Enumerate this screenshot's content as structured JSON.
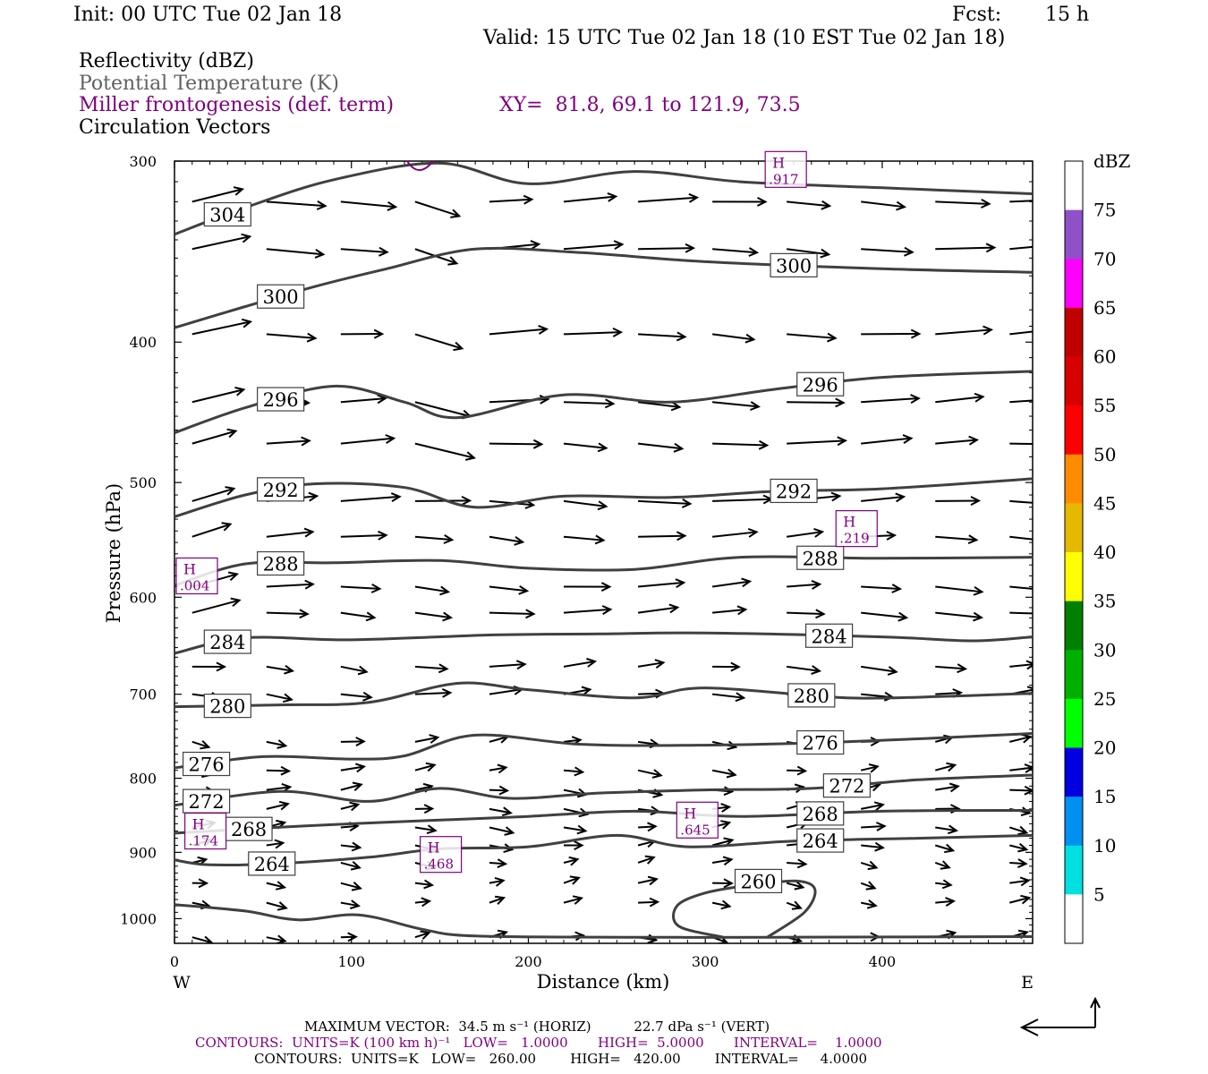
{
  "header": {
    "init": "Init: 00 UTC Tue 02 Jan 18",
    "fcst_label": "Fcst:",
    "fcst_value": "15 h",
    "valid": "Valid: 15 UTC Tue 02 Jan 18 (10 EST Tue 02 Jan 18)",
    "field1": "Reflectivity (dBZ)",
    "field2": "Potential Temperature (K)",
    "field3": "Miller frontogenesis (def. term)",
    "xy": "XY=  81.8, 69.1 to 121.9, 73.5",
    "field4": "Circulation Vectors"
  },
  "colors": {
    "theta_contour": "#404040",
    "frontogenesis": "#800080",
    "vector": "#000000"
  },
  "chart_data": {
    "type": "line",
    "subtype": "vertical cross-section",
    "xlabel": "Distance (km)",
    "ylabel": "Pressure (hPa)",
    "xlim": [
      0,
      485
    ],
    "ylim": [
      1040,
      300
    ],
    "y_scale": "log",
    "x_ticks": [
      "0",
      "100",
      "200",
      "300",
      "400"
    ],
    "y_ticks": [
      "300",
      "400",
      "500",
      "600",
      "700",
      "800",
      "900",
      "1000"
    ],
    "west_label": "W",
    "east_label": "E",
    "theta_contours": [
      {
        "label": "304",
        "points": [
          [
            0,
            337
          ],
          [
            40,
            323
          ],
          [
            90,
            309
          ],
          [
            150,
            301
          ],
          [
            200,
            311
          ],
          [
            260,
            305
          ],
          [
            320,
            310
          ],
          [
            400,
            313
          ],
          [
            485,
            316
          ]
        ]
      },
      {
        "label": "300",
        "points": [
          [
            0,
            391
          ],
          [
            40,
            378
          ],
          [
            80,
            366
          ],
          [
            120,
            356
          ],
          [
            170,
            345
          ],
          [
            230,
            347
          ],
          [
            300,
            352
          ],
          [
            400,
            356
          ],
          [
            485,
            358
          ]
        ]
      },
      {
        "label": "296",
        "points": [
          [
            0,
            462
          ],
          [
            40,
            444
          ],
          [
            90,
            429
          ],
          [
            130,
            440
          ],
          [
            160,
            451
          ],
          [
            220,
            435
          ],
          [
            280,
            440
          ],
          [
            340,
            431
          ],
          [
            400,
            423
          ],
          [
            485,
            419
          ]
        ]
      },
      {
        "label": "292",
        "points": [
          [
            0,
            528
          ],
          [
            40,
            510
          ],
          [
            80,
            501
          ],
          [
            130,
            504
          ],
          [
            170,
            520
          ],
          [
            220,
            511
          ],
          [
            280,
            512
          ],
          [
            340,
            507
          ],
          [
            400,
            505
          ],
          [
            485,
            497
          ]
        ]
      },
      {
        "label": "288",
        "points": [
          [
            0,
            589
          ],
          [
            40,
            569
          ],
          [
            90,
            568
          ],
          [
            150,
            566
          ],
          [
            200,
            573
          ],
          [
            260,
            574
          ],
          [
            320,
            563
          ],
          [
            400,
            564
          ],
          [
            485,
            563
          ]
        ]
      },
      {
        "label": "284",
        "points": [
          [
            0,
            656
          ],
          [
            40,
            640
          ],
          [
            100,
            642
          ],
          [
            180,
            637
          ],
          [
            240,
            636
          ],
          [
            300,
            635
          ],
          [
            400,
            639
          ],
          [
            450,
            643
          ],
          [
            485,
            639
          ]
        ]
      },
      {
        "label": "280",
        "points": [
          [
            0,
            714
          ],
          [
            60,
            712
          ],
          [
            110,
            709
          ],
          [
            160,
            688
          ],
          [
            200,
            695
          ],
          [
            260,
            704
          ],
          [
            300,
            693
          ],
          [
            380,
            704
          ],
          [
            440,
            702
          ],
          [
            485,
            699
          ]
        ]
      },
      {
        "label": "276",
        "points": [
          [
            0,
            787
          ],
          [
            50,
            773
          ],
          [
            100,
            776
          ],
          [
            130,
            772
          ],
          [
            170,
            747
          ],
          [
            230,
            758
          ],
          [
            300,
            759
          ],
          [
            380,
            755
          ],
          [
            485,
            745
          ]
        ]
      },
      {
        "label": "272",
        "points": [
          [
            0,
            835
          ],
          [
            60,
            817
          ],
          [
            110,
            830
          ],
          [
            150,
            813
          ],
          [
            190,
            826
          ],
          [
            240,
            819
          ],
          [
            300,
            815
          ],
          [
            360,
            813
          ],
          [
            420,
            802
          ],
          [
            485,
            796
          ]
        ]
      },
      {
        "label": "268",
        "points": [
          [
            0,
            873
          ],
          [
            50,
            866
          ],
          [
            100,
            860
          ],
          [
            150,
            855
          ],
          [
            200,
            850
          ],
          [
            260,
            843
          ],
          [
            320,
            850
          ],
          [
            400,
            843
          ],
          [
            485,
            842
          ]
        ]
      },
      {
        "label": "264",
        "points": [
          [
            0,
            911
          ],
          [
            20,
            918
          ],
          [
            60,
            916
          ],
          [
            110,
            907
          ],
          [
            150,
            895
          ],
          [
            200,
            892
          ],
          [
            250,
            876
          ],
          [
            290,
            892
          ],
          [
            350,
            884
          ],
          [
            420,
            880
          ],
          [
            485,
            876
          ]
        ]
      },
      {
        "label": "260",
        "points": [
          [
            0,
            978
          ],
          [
            40,
            988
          ],
          [
            70,
            1002
          ],
          [
            104,
            994
          ],
          [
            140,
            1017
          ],
          [
            170,
            1028
          ],
          [
            260,
            1030
          ],
          [
            340,
            1030
          ],
          [
            485,
            1029
          ]
        ],
        "closed_loop": [
          [
            310,
            1030
          ],
          [
            285,
            1012
          ],
          [
            284,
            980
          ],
          [
            300,
            960
          ],
          [
            326,
            948
          ],
          [
            352,
            942
          ],
          [
            362,
            955
          ],
          [
            356,
            990
          ],
          [
            335,
            1030
          ]
        ]
      }
    ],
    "frontogenesis_maxima": [
      {
        "marker": "H",
        "value": ".917",
        "x": 345,
        "p": 304
      },
      {
        "marker": "H",
        "value": ".219",
        "x": 385,
        "p": 538
      },
      {
        "marker": "H",
        "value": ".004",
        "x": 3,
        "p": 580
      },
      {
        "marker": "H",
        "value": ".645",
        "x": 295,
        "p": 855
      },
      {
        "marker": "H",
        "value": ".174",
        "x": 17,
        "p": 870
      },
      {
        "marker": "H",
        "value": ".468",
        "x": 150,
        "p": 903
      }
    ],
    "colorbar": {
      "title": "dBZ",
      "labels": [
        "75",
        "70",
        "65",
        "60",
        "55",
        "50",
        "45",
        "40",
        "35",
        "30",
        "25",
        "20",
        "15",
        "10",
        "5"
      ],
      "colors": [
        "#ffffff",
        "#9050c8",
        "#ff00ff",
        "#c00000",
        "#d80000",
        "#ff0000",
        "#ff8c00",
        "#e6b800",
        "#ffff00",
        "#008000",
        "#00b000",
        "#00ff00",
        "#0000e0",
        "#0090f0",
        "#00e0e0",
        "#ffffff"
      ]
    }
  },
  "footer": {
    "max_vector": "MAXIMUM VECTOR:  34.5 m s⁻¹ (HORIZ)          22.7 dPa s⁻¹ (VERT)",
    "contours1": "CONTOURS:  UNITS=K (100 km h)⁻¹   LOW=   1.0000       HIGH=  5.0000       INTERVAL=    1.0000",
    "contours2": "CONTOURS:  UNITS=K   LOW=   260.00        HIGH=   420.00        INTERVAL=     4.0000"
  }
}
